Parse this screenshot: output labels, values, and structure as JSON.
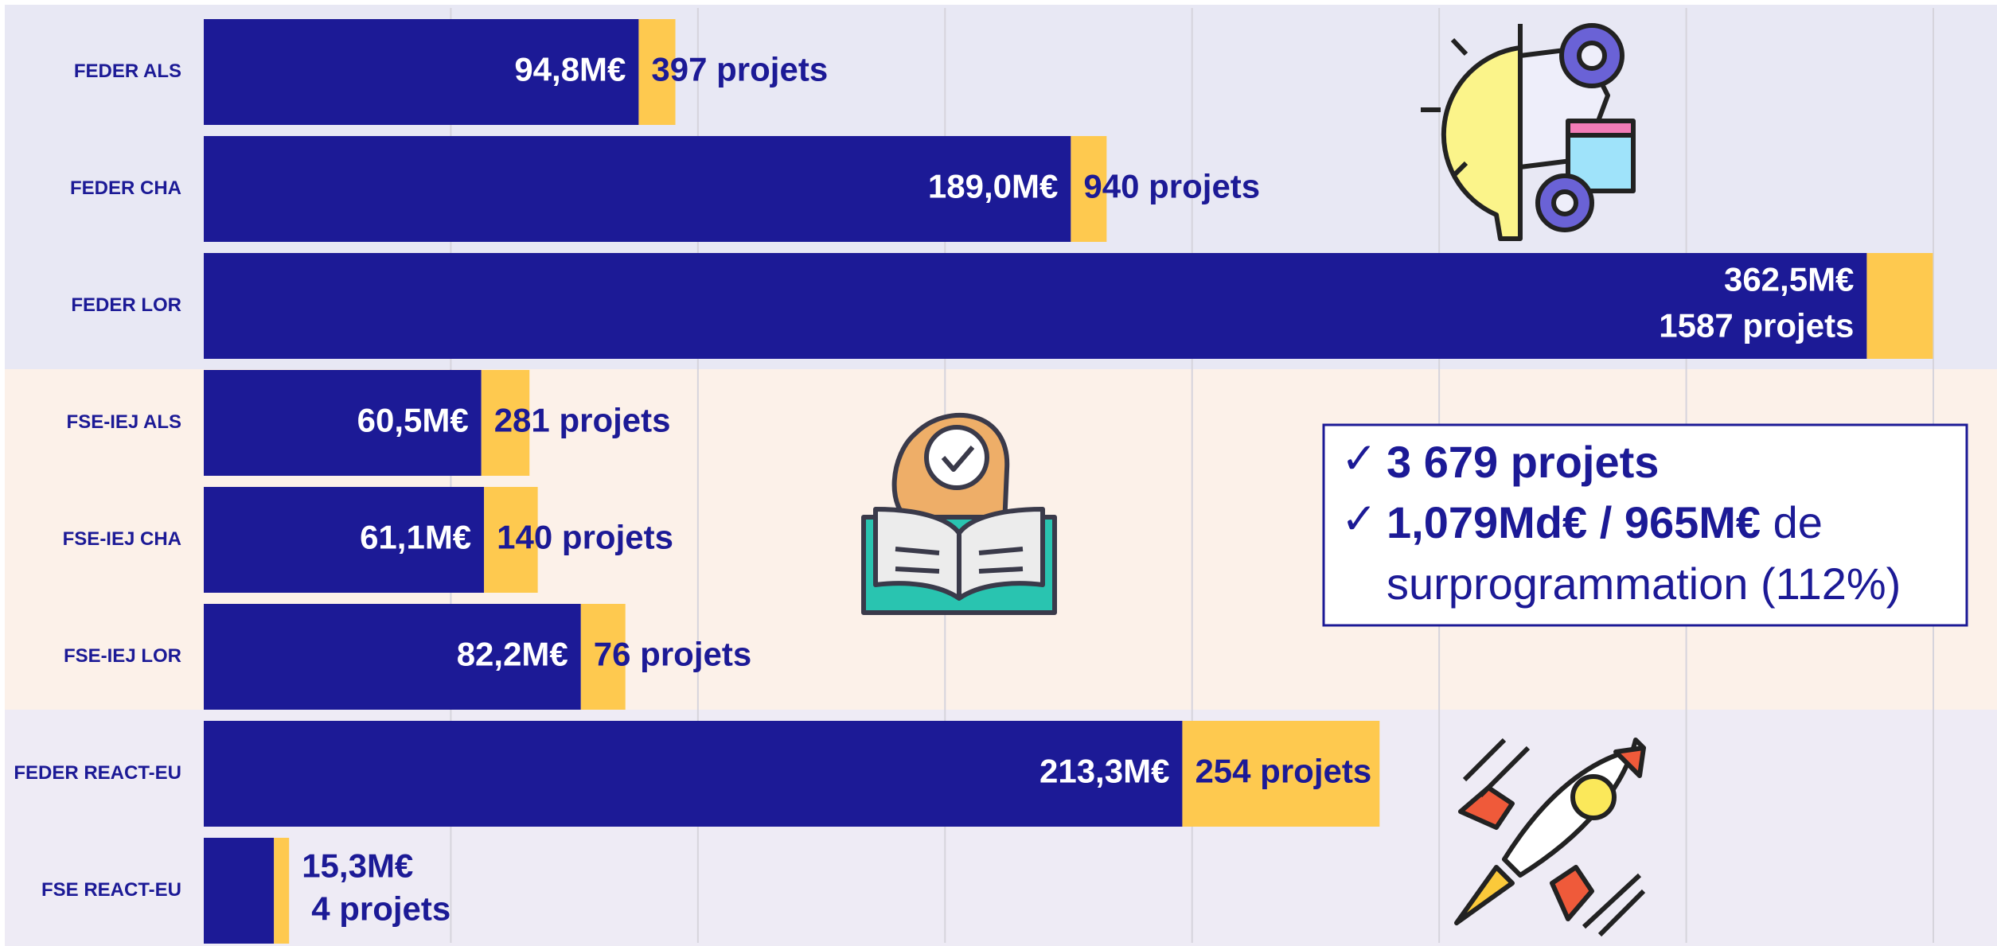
{
  "chart_data": {
    "type": "stacked-bar-horizontal",
    "categories": [
      "FEDER ALS",
      "FEDER CHA",
      "FEDER LOR",
      "FSE-IEJ ALS",
      "FSE-IEJ CHA",
      "FSE-IEJ LOR",
      "FEDER REACT-EU",
      "FSE REACT-EU"
    ],
    "series": [
      {
        "color": "#1c1a96",
        "values": [
          94.8,
          189.0,
          362.5,
          60.5,
          61.1,
          82.2,
          213.3,
          15.3
        ],
        "value_labels": [
          "94,8M€",
          "189,0M€",
          "362,5M€",
          "60,5M€",
          "61,1M€",
          "82,2M€",
          "213,3M€",
          "15,3M€"
        ]
      },
      {
        "color": "#fec94f",
        "values": [
          8.0,
          7.8,
          14.4,
          10.5,
          11.7,
          9.7,
          43.0,
          3.3
        ]
      }
    ],
    "project_labels": [
      "397 projets",
      "940 projets",
      "1587 projets",
      "281  projets",
      "140  projets",
      "76  projets",
      "254  projets",
      "4  projets"
    ],
    "xlim": [
      0,
      377
    ],
    "grid": true,
    "summary": {
      "line1": "3 679 projets",
      "line2_bold": "1,079Md€ / 965M€",
      "line2_normal": " de",
      "line3": "surprogrammation (112%)"
    }
  }
}
